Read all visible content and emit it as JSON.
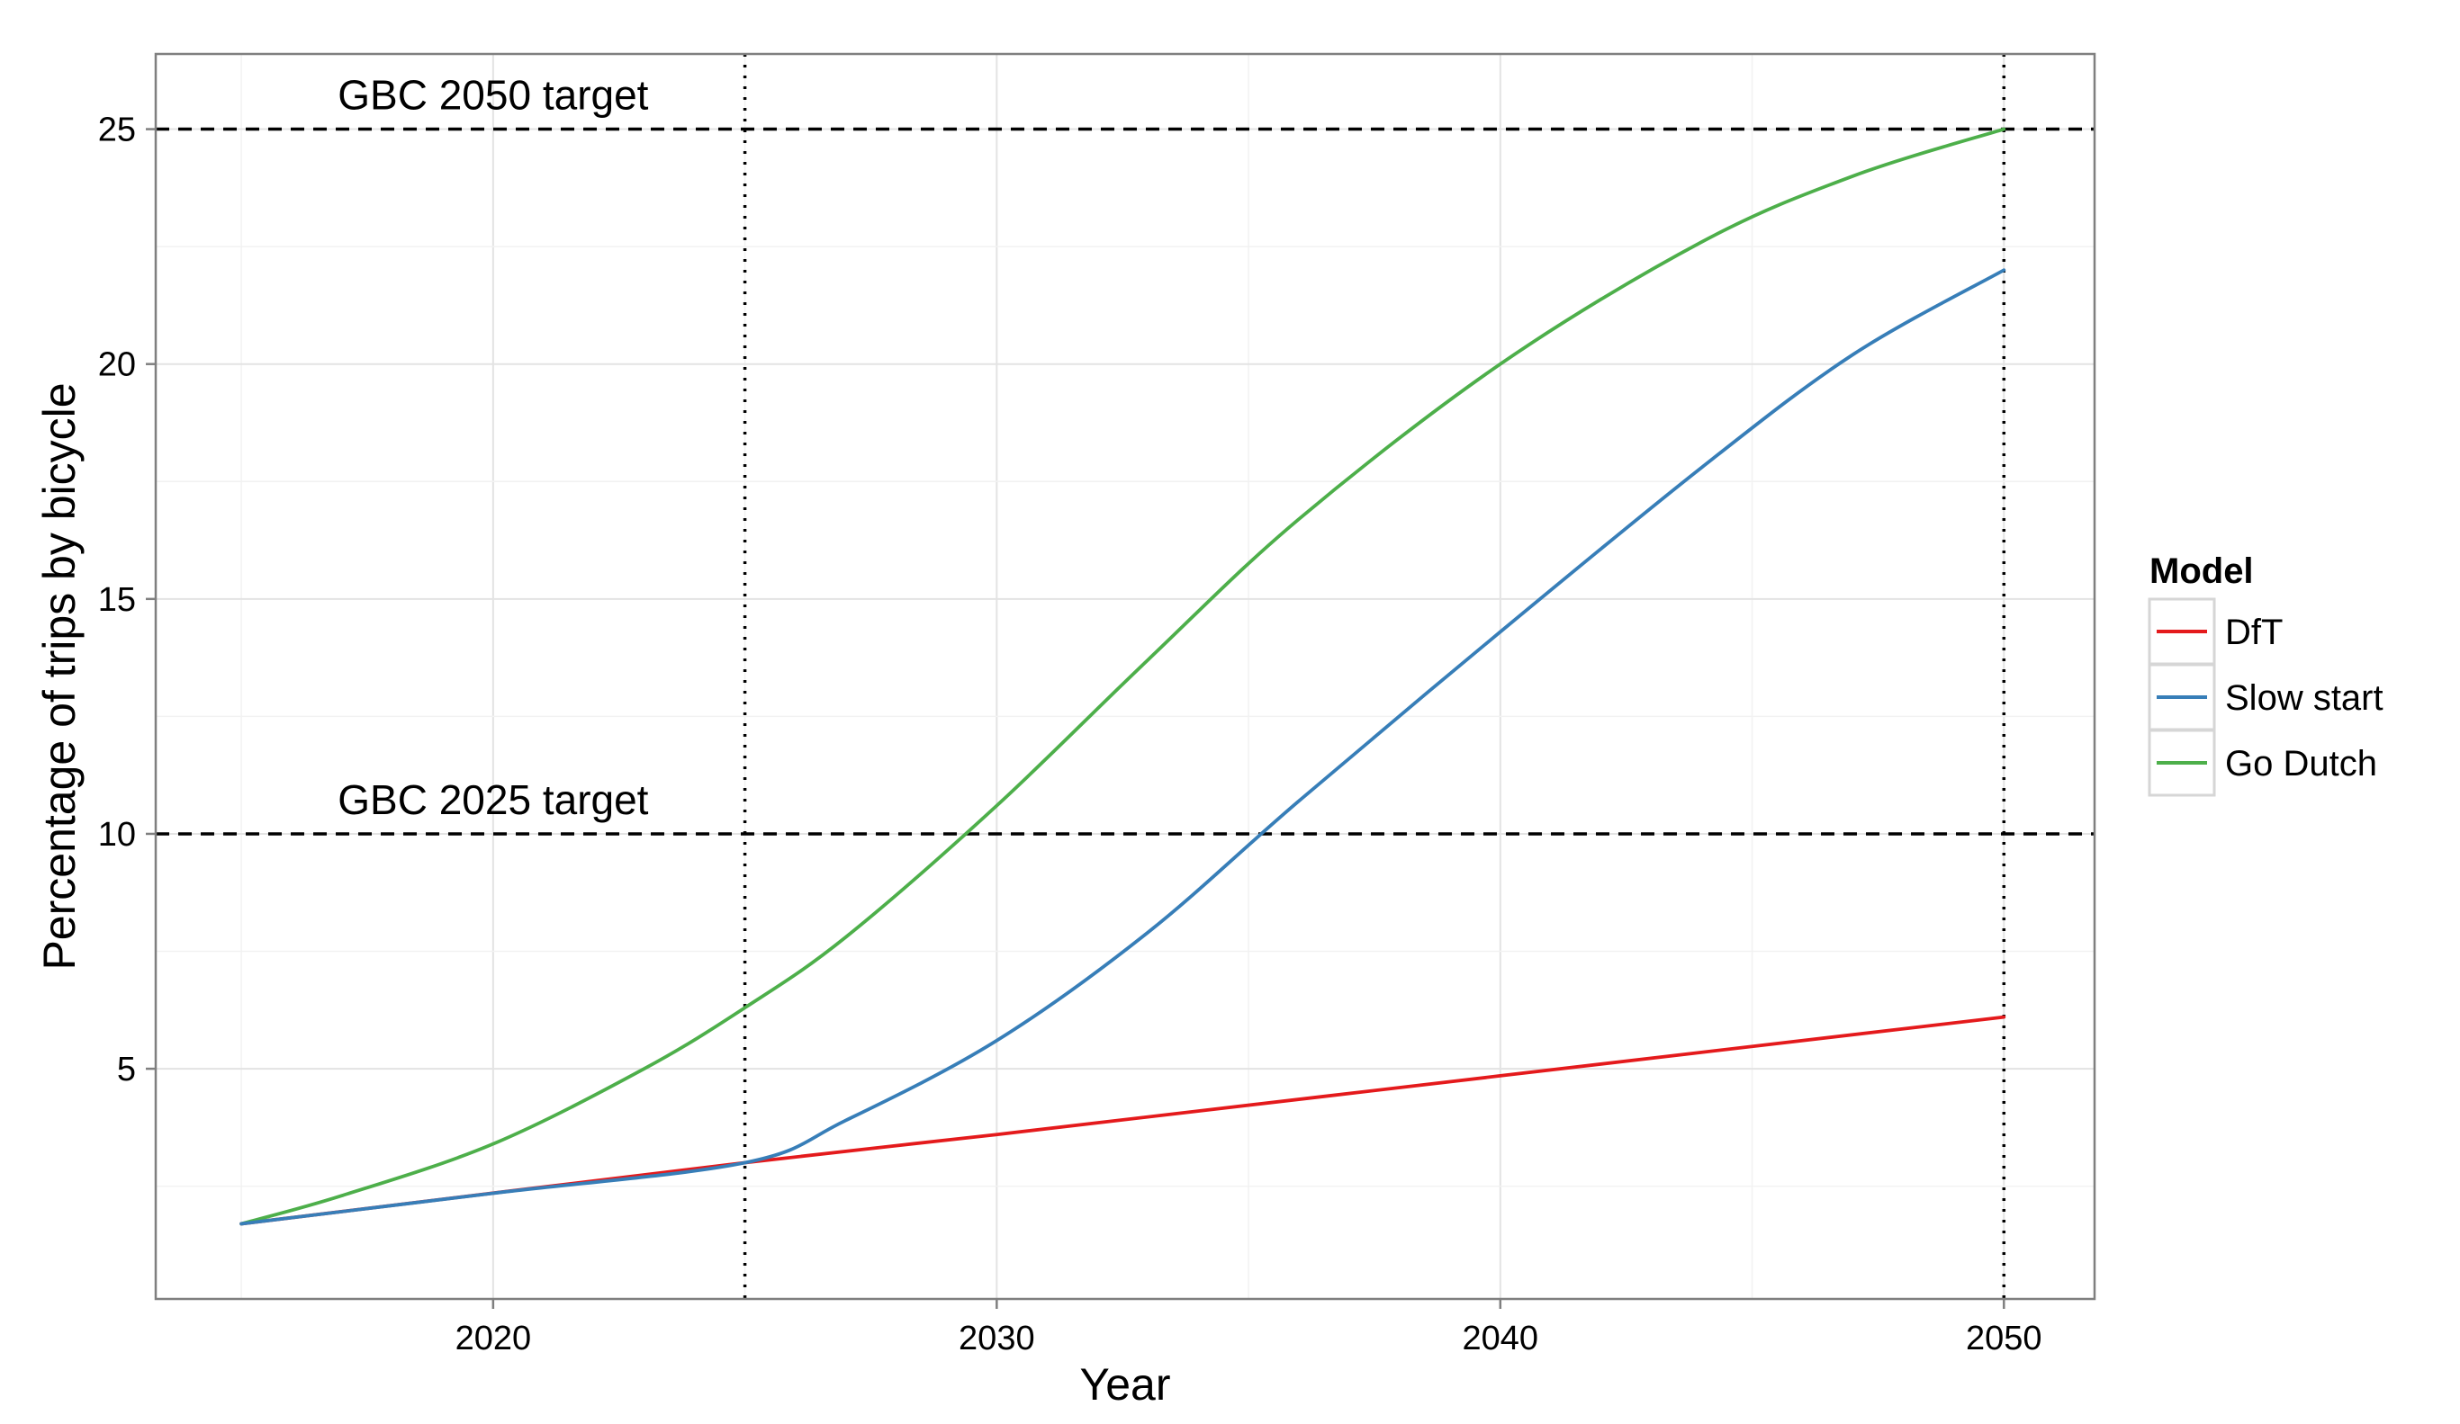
{
  "chart_data": {
    "type": "line",
    "xlabel": "Year",
    "ylabel": "Percentage of trips by bicycle",
    "xlim": [
      2013.3,
      2051.8
    ],
    "ylim": [
      0.1,
      26.6
    ],
    "xticks": [
      2020,
      2030,
      2040,
      2050
    ],
    "yticks": [
      5,
      10,
      15,
      20,
      25
    ],
    "grid": true,
    "legend": {
      "title": "Model",
      "placement": "right"
    },
    "series": [
      {
        "name": "DfT",
        "color": "#e41a1c",
        "x": [
          2015,
          2025,
          2030,
          2040,
          2050
        ],
        "y": [
          1.7,
          3.0,
          3.6,
          4.85,
          6.1
        ]
      },
      {
        "name": "Slow start",
        "color": "#377eb8",
        "x": [
          2015,
          2020,
          2025,
          2027,
          2030,
          2033,
          2036,
          2040,
          2044,
          2047,
          2050
        ],
        "y": [
          1.7,
          2.35,
          3.0,
          3.9,
          5.6,
          7.9,
          10.7,
          14.3,
          17.8,
          20.2,
          22.0
        ]
      },
      {
        "name": "Go Dutch",
        "color": "#4daf4a",
        "x": [
          2015,
          2017,
          2020,
          2023,
          2025,
          2027,
          2030,
          2033,
          2036,
          2040,
          2044,
          2047,
          2050
        ],
        "y": [
          1.7,
          2.3,
          3.4,
          5.0,
          6.3,
          7.8,
          10.6,
          13.7,
          16.7,
          20.0,
          22.6,
          24.0,
          25.0
        ]
      }
    ],
    "reference_lines": {
      "horizontal": [
        {
          "y": 25,
          "label": "GBC 2050 target",
          "label_x": 2020,
          "style": "dashed"
        },
        {
          "y": 10,
          "label": "GBC 2025 target",
          "label_x": 2020,
          "style": "dashed"
        }
      ],
      "vertical": [
        {
          "x": 2025,
          "style": "dotted"
        },
        {
          "x": 2050,
          "style": "dotted"
        }
      ]
    }
  }
}
